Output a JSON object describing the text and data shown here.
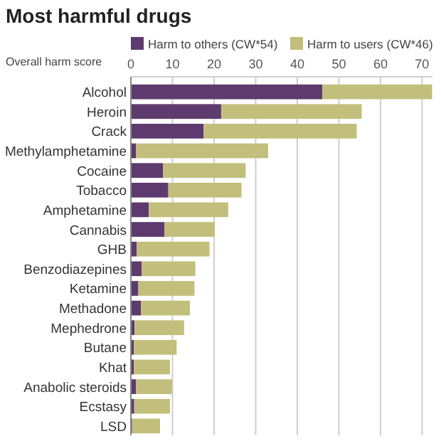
{
  "chart_data": {
    "type": "bar",
    "orientation": "horizontal",
    "stacked": true,
    "title": "Most harmful drugs",
    "xlabel": "Overall harm score",
    "categories": [
      "Alcohol",
      "Heroin",
      "Crack",
      "Methylamphetamine",
      "Cocaine",
      "Tobacco",
      "Amphetamine",
      "Cannabis",
      "GHB",
      "Benzodiazepines",
      "Ketamine",
      "Methadone",
      "Mephedrone",
      "Butane",
      "Khat",
      "Anabolic steroids",
      "Ecstasy",
      "LSD"
    ],
    "series": [
      {
        "name": "Harm to others (CW*54)",
        "color": "#5e3b6e",
        "values": [
          46,
          21.7,
          17.5,
          1.2,
          7.7,
          9,
          4.3,
          8.1,
          1.4,
          2.6,
          1.8,
          2.4,
          0.9,
          0.7,
          0.7,
          1.2,
          0.8,
          0.3
        ]
      },
      {
        "name": "Harm to users (CW*46)",
        "color": "#c2bf7c",
        "values": [
          26.4,
          33.8,
          36.8,
          31.8,
          19.9,
          17.6,
          19.1,
          12.1,
          17.5,
          12.9,
          13.5,
          11.8,
          11.9,
          10.3,
          8.7,
          8.7,
          8.6,
          6.7
        ]
      }
    ],
    "xlim": [
      0,
      72.5
    ],
    "xticks": [
      0,
      10,
      20,
      30,
      40,
      50,
      60,
      70
    ],
    "grid": "x",
    "legend": "top"
  }
}
